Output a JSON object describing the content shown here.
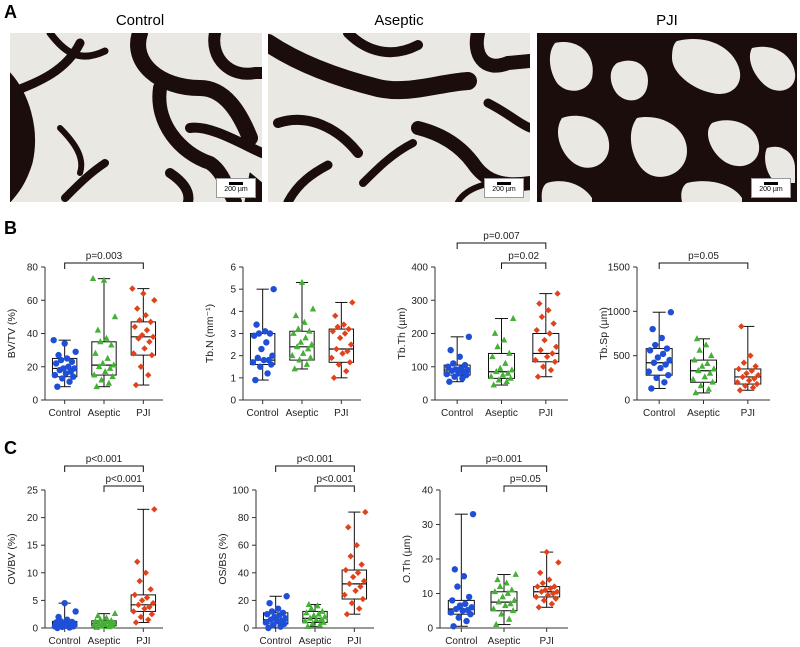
{
  "panels": {
    "A": "A",
    "B": "B",
    "C": "C"
  },
  "micrographs": [
    {
      "title": "Control",
      "scale": "200 µm"
    },
    {
      "title": "Aseptic",
      "scale": "200 µm"
    },
    {
      "title": "PJI",
      "scale": "200 µm"
    }
  ],
  "colors": {
    "Control": "#1f4fd6",
    "Aseptic": "#44b035",
    "PJI": "#e0431b",
    "stain": "#1b0d0b",
    "background": "#e9e8e3"
  },
  "chart_data": [
    {
      "id": "bvtv",
      "type": "box",
      "ylabel": "BV/TV (%)",
      "ylim": [
        0,
        80
      ],
      "yticks": [
        0,
        20,
        40,
        60,
        80
      ],
      "categories": [
        "Control",
        "Aseptic",
        "PJI"
      ],
      "boxes": [
        {
          "min": 8,
          "q1": 14,
          "median": 19,
          "q3": 25,
          "max": 36
        },
        {
          "min": 8,
          "q1": 15,
          "median": 21,
          "q3": 35,
          "max": 73
        },
        {
          "min": 9,
          "q1": 27,
          "median": 38,
          "q3": 47,
          "max": 67
        }
      ],
      "points": [
        [
          8,
          11,
          13,
          14,
          15,
          16,
          17,
          18,
          19,
          19,
          20,
          22,
          23,
          24,
          25,
          27,
          29,
          34,
          36
        ],
        [
          8,
          10,
          12,
          14,
          15,
          17,
          19,
          20,
          21,
          22,
          25,
          28,
          33,
          35,
          37,
          42,
          50,
          72,
          73
        ],
        [
          9,
          15,
          20,
          27,
          28,
          31,
          35,
          37,
          38,
          39,
          42,
          44,
          47,
          48,
          51,
          55,
          60,
          64,
          67
        ]
      ],
      "comparisons": [
        {
          "from": 0,
          "to": 2,
          "label": "p=0.003",
          "level": 0
        }
      ]
    },
    {
      "id": "tbn",
      "type": "box",
      "ylabel": "Tb.N (mm⁻¹)",
      "ylim": [
        0,
        6
      ],
      "yticks": [
        0,
        1,
        2,
        3,
        4,
        5,
        6
      ],
      "categories": [
        "Control",
        "Aseptic",
        "PJI"
      ],
      "boxes": [
        {
          "min": 0.9,
          "q1": 1.6,
          "median": 1.8,
          "q3": 3.0,
          "max": 5.0
        },
        {
          "min": 1.4,
          "q1": 1.8,
          "median": 2.4,
          "q3": 3.1,
          "max": 5.3
        },
        {
          "min": 1.0,
          "q1": 1.7,
          "median": 2.3,
          "q3": 3.2,
          "max": 4.4
        }
      ],
      "points": [
        [
          0.9,
          1.2,
          1.5,
          1.6,
          1.7,
          1.8,
          1.8,
          1.9,
          2.0,
          2.3,
          2.6,
          2.9,
          3.0,
          3.0,
          3.1,
          3.4,
          5.0
        ],
        [
          1.4,
          1.6,
          1.8,
          1.9,
          2.0,
          2.1,
          2.3,
          2.4,
          2.5,
          2.6,
          2.8,
          3.0,
          3.1,
          3.2,
          3.5,
          3.8,
          4.1,
          5.3
        ],
        [
          1.0,
          1.3,
          1.6,
          1.7,
          1.9,
          2.1,
          2.2,
          2.3,
          2.5,
          2.8,
          3.0,
          3.1,
          3.2,
          3.3,
          3.4,
          3.8,
          4.4
        ]
      ],
      "comparisons": []
    },
    {
      "id": "tbth",
      "type": "box",
      "ylabel": "Tb.Th (µm)",
      "ylim": [
        0,
        400
      ],
      "yticks": [
        0,
        100,
        200,
        300,
        400
      ],
      "categories": [
        "Control",
        "Aseptic",
        "PJI"
      ],
      "boxes": [
        {
          "min": 55,
          "q1": 75,
          "median": 90,
          "q3": 105,
          "max": 190
        },
        {
          "min": 45,
          "q1": 65,
          "median": 85,
          "q3": 140,
          "max": 245
        },
        {
          "min": 70,
          "q1": 115,
          "median": 140,
          "q3": 200,
          "max": 320
        }
      ],
      "points": [
        [
          55,
          65,
          70,
          75,
          78,
          80,
          85,
          88,
          90,
          92,
          95,
          100,
          105,
          110,
          130,
          150,
          190
        ],
        [
          45,
          55,
          60,
          65,
          70,
          75,
          80,
          85,
          90,
          95,
          110,
          130,
          140,
          160,
          180,
          200,
          245
        ],
        [
          70,
          90,
          100,
          115,
          120,
          130,
          140,
          150,
          160,
          180,
          200,
          210,
          230,
          250,
          270,
          290,
          320
        ]
      ],
      "comparisons": [
        {
          "from": 0,
          "to": 2,
          "label": "p=0.007",
          "level": 1
        },
        {
          "from": 1,
          "to": 2,
          "label": "p=0.02",
          "level": 0
        }
      ]
    },
    {
      "id": "tbsp",
      "type": "box",
      "ylabel": "Tb.Sp (µm)",
      "ylim": [
        0,
        1500
      ],
      "yticks": [
        0,
        500,
        1000,
        1500
      ],
      "categories": [
        "Control",
        "Aseptic",
        "PJI"
      ],
      "boxes": [
        {
          "min": 130,
          "q1": 280,
          "median": 420,
          "q3": 580,
          "max": 990
        },
        {
          "min": 80,
          "q1": 200,
          "median": 330,
          "q3": 450,
          "max": 690
        },
        {
          "min": 110,
          "q1": 180,
          "median": 260,
          "q3": 350,
          "max": 830
        }
      ],
      "points": [
        [
          130,
          200,
          250,
          280,
          320,
          360,
          400,
          420,
          450,
          480,
          520,
          560,
          580,
          620,
          700,
          800,
          990
        ],
        [
          80,
          120,
          160,
          200,
          230,
          260,
          300,
          330,
          350,
          380,
          410,
          450,
          500,
          560,
          620,
          690
        ],
        [
          110,
          140,
          160,
          180,
          200,
          220,
          240,
          260,
          280,
          300,
          330,
          350,
          380,
          420,
          500,
          830
        ]
      ],
      "comparisons": [
        {
          "from": 0,
          "to": 2,
          "label": "p=0.05",
          "level": 0
        }
      ]
    },
    {
      "id": "ovbv",
      "type": "box",
      "ylabel": "OV/BV (%)",
      "ylim": [
        0,
        25
      ],
      "yticks": [
        0,
        5,
        10,
        15,
        20,
        25
      ],
      "categories": [
        "Control",
        "Aseptic",
        "PJI"
      ],
      "boxes": [
        {
          "min": 0.0,
          "q1": 0.3,
          "median": 0.6,
          "q3": 1.2,
          "max": 4.5
        },
        {
          "min": 0.1,
          "q1": 0.4,
          "median": 0.8,
          "q3": 1.3,
          "max": 2.6
        },
        {
          "min": 1.0,
          "q1": 3.0,
          "median": 4.2,
          "q3": 6.0,
          "max": 21.5
        }
      ],
      "points": [
        [
          0.0,
          0.1,
          0.2,
          0.3,
          0.3,
          0.4,
          0.5,
          0.6,
          0.7,
          0.8,
          0.9,
          1.0,
          1.1,
          1.2,
          1.5,
          2.0,
          3.0,
          4.5
        ],
        [
          0.1,
          0.2,
          0.3,
          0.4,
          0.5,
          0.6,
          0.7,
          0.8,
          0.9,
          1.0,
          1.1,
          1.2,
          1.3,
          1.5,
          1.8,
          2.2,
          2.6
        ],
        [
          1.0,
          1.5,
          2.0,
          2.5,
          3.0,
          3.5,
          3.8,
          4.2,
          4.5,
          5.0,
          5.5,
          6.0,
          7.0,
          8.5,
          10.0,
          12.0,
          21.5
        ]
      ],
      "comparisons": [
        {
          "from": 0,
          "to": 2,
          "label": "p<0.001",
          "level": 1
        },
        {
          "from": 1,
          "to": 2,
          "label": "p<0.001",
          "level": 0
        }
      ]
    },
    {
      "id": "osbs",
      "type": "box",
      "ylabel": "OS/BS (%)",
      "ylim": [
        0,
        100
      ],
      "yticks": [
        0,
        20,
        40,
        60,
        80,
        100
      ],
      "categories": [
        "Control",
        "Aseptic",
        "PJI"
      ],
      "boxes": [
        {
          "min": 0,
          "q1": 3,
          "median": 6,
          "q3": 11,
          "max": 23
        },
        {
          "min": 1,
          "q1": 4,
          "median": 7,
          "q3": 12,
          "max": 17
        },
        {
          "min": 10,
          "q1": 21,
          "median": 32,
          "q3": 42,
          "max": 84
        }
      ],
      "points": [
        [
          0,
          1,
          2,
          3,
          4,
          5,
          5,
          6,
          7,
          8,
          9,
          10,
          11,
          12,
          14,
          18,
          23
        ],
        [
          1,
          2,
          3,
          4,
          5,
          6,
          6,
          7,
          8,
          9,
          10,
          11,
          12,
          14,
          16,
          17
        ],
        [
          10,
          14,
          18,
          21,
          24,
          27,
          30,
          32,
          34,
          37,
          40,
          42,
          46,
          52,
          60,
          73,
          84
        ]
      ],
      "comparisons": [
        {
          "from": 0,
          "to": 2,
          "label": "p<0.001",
          "level": 1
        },
        {
          "from": 1,
          "to": 2,
          "label": "p<0.001",
          "level": 0
        }
      ]
    },
    {
      "id": "oth",
      "type": "box",
      "ylabel": "O.Th (µm)",
      "ylim": [
        0,
        40
      ],
      "yticks": [
        0,
        10,
        20,
        30,
        40
      ],
      "categories": [
        "Control",
        "Aseptic",
        "PJI"
      ],
      "boxes": [
        {
          "min": 0.5,
          "q1": 4,
          "median": 5.5,
          "q3": 8,
          "max": 33
        },
        {
          "min": 1,
          "q1": 5,
          "median": 7.5,
          "q3": 10.5,
          "max": 15.5
        },
        {
          "min": 6,
          "q1": 9,
          "median": 10.5,
          "q3": 12,
          "max": 22
        }
      ],
      "points": [
        [
          0.5,
          2,
          3,
          4,
          4.5,
          5,
          5.2,
          5.5,
          6,
          6.5,
          7,
          8,
          9,
          12,
          15,
          17,
          33
        ],
        [
          1,
          2.5,
          4,
          5,
          5.5,
          6.5,
          7,
          7.5,
          8,
          9,
          10,
          10.5,
          11,
          12,
          13,
          14,
          15.5
        ],
        [
          6,
          7,
          8,
          8.5,
          9,
          9.5,
          10,
          10.5,
          10.5,
          11,
          11.5,
          12,
          12,
          13,
          14,
          16,
          19,
          22
        ]
      ],
      "comparisons": [
        {
          "from": 0,
          "to": 2,
          "label": "p=0.001",
          "level": 1
        },
        {
          "from": 1,
          "to": 2,
          "label": "p=0.05",
          "level": 0
        }
      ]
    }
  ]
}
